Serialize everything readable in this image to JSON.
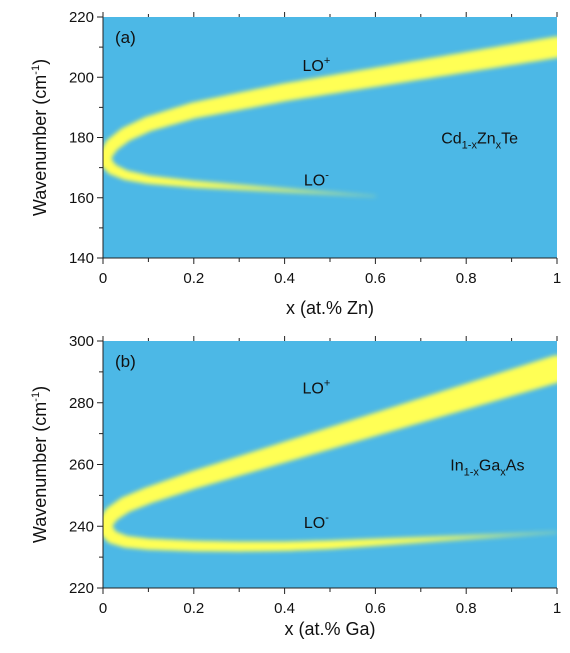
{
  "colors": {
    "background": "#4CB8E6",
    "band": "#FFFF55",
    "band_glow": "#F2EE5A",
    "axis": "#222222"
  },
  "chart_data": [
    {
      "type": "heatmap",
      "panel_label": "(a)",
      "xlabel": "x (at.% Zn)",
      "ylabel_main": "Wavenumber (cm",
      "ylabel_sup": "-1",
      "ylabel_end": ")",
      "xlim": [
        0,
        1
      ],
      "ylim": [
        140,
        220
      ],
      "xticks": [
        "0",
        "0.2",
        "0.4",
        "0.6",
        "0.8",
        "1"
      ],
      "xtick_values": [
        0,
        0.2,
        0.4,
        0.6,
        0.8,
        1
      ],
      "yticks": [
        "140",
        "160",
        "180",
        "200",
        "220"
      ],
      "ytick_values": [
        140,
        160,
        180,
        200,
        220
      ],
      "grid": false,
      "series": [
        {
          "name": "LO+",
          "x": [
            0,
            0.02,
            0.05,
            0.1,
            0.2,
            0.3,
            0.4,
            0.5,
            0.6,
            0.7,
            0.8,
            0.9,
            1.0
          ],
          "y": [
            173,
            177.5,
            181,
            184.5,
            189,
            192,
            195,
            197.5,
            200,
            202.5,
            205,
            207.5,
            210
          ],
          "width": [
            2.2,
            2.4,
            2.5,
            2.6,
            2.8,
            3.0,
            3.1,
            3.2,
            3.3,
            3.4,
            3.5,
            3.6,
            3.7
          ],
          "intensity": [
            1,
            1,
            1,
            1,
            1,
            1,
            1,
            1,
            1,
            1,
            1,
            1,
            1
          ]
        },
        {
          "name": "LO-",
          "x": [
            0,
            0.02,
            0.05,
            0.1,
            0.2,
            0.3,
            0.4,
            0.5,
            0.6
          ],
          "y": [
            173,
            169.5,
            167.5,
            166,
            164.5,
            163.5,
            162.5,
            161.5,
            160.5
          ],
          "width": [
            2.2,
            1.9,
            1.7,
            1.5,
            1.3,
            1.1,
            0.9,
            0.7,
            0.5
          ],
          "intensity": [
            1,
            0.95,
            0.9,
            0.8,
            0.65,
            0.5,
            0.38,
            0.25,
            0.12
          ]
        }
      ],
      "annotations": {
        "lo_plus": {
          "text": "LO",
          "sup": "+",
          "x": 0.47,
          "y": 202
        },
        "lo_minus": {
          "text": "LO",
          "sup": "-",
          "x": 0.47,
          "y": 164
        },
        "compound": {
          "parts": [
            {
              "t": "Cd",
              "s": "n"
            },
            {
              "t": "1-x",
              "s": "sub"
            },
            {
              "t": "Zn",
              "s": "n"
            },
            {
              "t": "x",
              "s": "sub"
            },
            {
              "t": "Te",
              "s": "n"
            }
          ],
          "x": 0.745,
          "y": 178
        }
      }
    },
    {
      "type": "heatmap",
      "panel_label": "(b)",
      "xlabel": "x (at.% Ga)",
      "ylabel_main": "Wavenumber (cm",
      "ylabel_sup": "-1",
      "ylabel_end": ")",
      "xlim": [
        0,
        1
      ],
      "ylim": [
        220,
        300
      ],
      "xticks": [
        "0",
        "0.2",
        "0.4",
        "0.6",
        "0.8",
        "1"
      ],
      "xtick_values": [
        0,
        0.2,
        0.4,
        0.6,
        0.8,
        1
      ],
      "yticks": [
        "220",
        "240",
        "260",
        "280",
        "300"
      ],
      "ytick_values": [
        220,
        240,
        260,
        280,
        300
      ],
      "grid": false,
      "series": [
        {
          "name": "LO+",
          "x": [
            0,
            0.02,
            0.05,
            0.1,
            0.2,
            0.3,
            0.4,
            0.5,
            0.6,
            0.7,
            0.8,
            0.9,
            1.0
          ],
          "y": [
            240,
            244,
            247,
            250,
            255,
            259.5,
            264,
            268.5,
            273,
            277.5,
            282,
            286.5,
            291
          ],
          "width": [
            2.4,
            2.6,
            2.7,
            2.8,
            3.0,
            3.2,
            3.4,
            3.6,
            3.8,
            4.0,
            4.2,
            4.4,
            4.6
          ],
          "intensity": [
            1,
            1,
            1,
            1,
            1,
            1,
            1,
            1,
            1,
            1,
            1,
            1,
            1
          ]
        },
        {
          "name": "LO-",
          "x": [
            0,
            0.02,
            0.05,
            0.1,
            0.2,
            0.3,
            0.4,
            0.5,
            0.6,
            0.7,
            0.8,
            0.9,
            1.0
          ],
          "y": [
            240,
            236.5,
            235,
            234.2,
            233.6,
            233.4,
            233.5,
            234,
            234.8,
            235.6,
            236.4,
            237.2,
            238
          ],
          "width": [
            2.4,
            2.2,
            2.0,
            1.9,
            1.8,
            1.7,
            1.6,
            1.5,
            1.3,
            1.1,
            0.9,
            0.7,
            0.5
          ],
          "intensity": [
            1,
            1,
            1,
            1,
            1,
            1,
            0.95,
            0.85,
            0.7,
            0.55,
            0.4,
            0.25,
            0.15
          ]
        }
      ],
      "annotations": {
        "lo_plus": {
          "text": "LO",
          "sup": "+",
          "x": 0.47,
          "y": 283
        },
        "lo_minus": {
          "text": "LO",
          "sup": "-",
          "x": 0.47,
          "y": 239.5
        },
        "compound": {
          "parts": [
            {
              "t": "In",
              "s": "n"
            },
            {
              "t": "1-x",
              "s": "sub"
            },
            {
              "t": "Ga",
              "s": "n"
            },
            {
              "t": "x",
              "s": "sub"
            },
            {
              "t": "As",
              "s": "n"
            }
          ],
          "x": 0.765,
          "y": 258
        }
      }
    }
  ]
}
